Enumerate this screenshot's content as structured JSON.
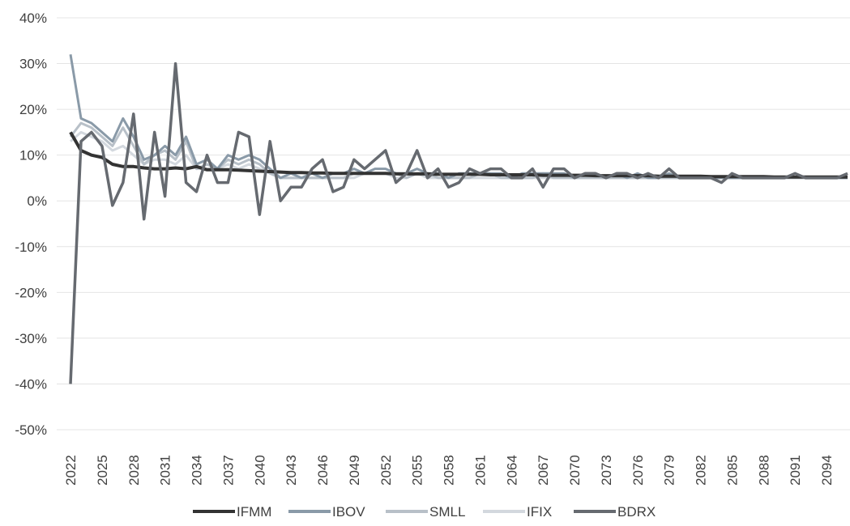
{
  "chart_data": {
    "type": "line",
    "title": "",
    "xlabel": "",
    "ylabel": "",
    "ylim": [
      -0.5,
      0.4
    ],
    "y_ticks": [
      {
        "value": 0.4,
        "label": "40%"
      },
      {
        "value": 0.3,
        "label": "30%"
      },
      {
        "value": 0.2,
        "label": "20%"
      },
      {
        "value": 0.1,
        "label": "10%"
      },
      {
        "value": 0.0,
        "label": "0%"
      },
      {
        "value": -0.1,
        "label": "-10%"
      },
      {
        "value": -0.2,
        "label": "-20%"
      },
      {
        "value": -0.3,
        "label": "-30%"
      },
      {
        "value": -0.4,
        "label": "-40%"
      },
      {
        "value": -0.5,
        "label": "-50%"
      }
    ],
    "x_range": [
      2022,
      2096
    ],
    "x_tick_labels": [
      "2022",
      "2025",
      "2028",
      "2031",
      "2034",
      "2037",
      "2040",
      "2043",
      "2046",
      "2049",
      "2052",
      "2055",
      "2058",
      "2061",
      "2064",
      "2067",
      "2070",
      "2073",
      "2076",
      "2079",
      "2082",
      "2085",
      "2088",
      "2091",
      "2094"
    ],
    "grid": true,
    "legend_position": "bottom",
    "series": [
      {
        "name": "IFMM",
        "color": "#333333",
        "x": [
          2022,
          2023,
          2024,
          2025,
          2026,
          2027,
          2028,
          2029,
          2030,
          2031,
          2032,
          2033,
          2034,
          2035,
          2036,
          2037,
          2038,
          2039,
          2040,
          2041,
          2042,
          2043,
          2044,
          2045,
          2046,
          2047,
          2048,
          2049,
          2050,
          2051,
          2052,
          2053,
          2054,
          2055,
          2056,
          2057,
          2058,
          2059,
          2060,
          2061,
          2062,
          2063,
          2064,
          2065,
          2066,
          2067,
          2068,
          2069,
          2070,
          2071,
          2072,
          2073,
          2074,
          2075,
          2076,
          2077,
          2078,
          2079,
          2080,
          2081,
          2082,
          2083,
          2084,
          2085,
          2086,
          2087,
          2088,
          2089,
          2090,
          2091,
          2092,
          2093,
          2094,
          2095,
          2096
        ],
        "values": [
          0.15,
          0.11,
          0.1,
          0.095,
          0.08,
          0.075,
          0.075,
          0.072,
          0.07,
          0.07,
          0.072,
          0.07,
          0.075,
          0.068,
          0.068,
          0.068,
          0.067,
          0.066,
          0.065,
          0.064,
          0.063,
          0.062,
          0.062,
          0.061,
          0.061,
          0.06,
          0.06,
          0.06,
          0.06,
          0.06,
          0.06,
          0.059,
          0.059,
          0.059,
          0.059,
          0.058,
          0.058,
          0.058,
          0.058,
          0.058,
          0.057,
          0.057,
          0.057,
          0.057,
          0.057,
          0.056,
          0.056,
          0.056,
          0.056,
          0.056,
          0.055,
          0.055,
          0.055,
          0.055,
          0.055,
          0.055,
          0.054,
          0.054,
          0.054,
          0.054,
          0.054,
          0.053,
          0.053,
          0.053,
          0.053,
          0.053,
          0.053,
          0.052,
          0.052,
          0.052,
          0.052,
          0.052,
          0.052,
          0.052,
          0.052
        ]
      },
      {
        "name": "IBOV",
        "color": "#8a9aa8",
        "x": [
          2022,
          2023,
          2024,
          2025,
          2026,
          2027,
          2028,
          2029,
          2030,
          2031,
          2032,
          2033,
          2034,
          2035,
          2036,
          2037,
          2038,
          2039,
          2040,
          2041,
          2042,
          2043,
          2044,
          2045,
          2046,
          2047,
          2048,
          2049,
          2050,
          2051,
          2052,
          2053,
          2054,
          2055,
          2056,
          2057,
          2058,
          2059,
          2060,
          2061,
          2062,
          2063,
          2064,
          2065,
          2066,
          2067,
          2068,
          2069,
          2070,
          2071,
          2072,
          2073,
          2074,
          2075,
          2076,
          2077,
          2078,
          2079,
          2080,
          2081,
          2082,
          2083,
          2084,
          2085,
          2086,
          2087,
          2088,
          2089,
          2090,
          2091,
          2092,
          2093,
          2094,
          2095,
          2096
        ],
        "values": [
          0.32,
          0.18,
          0.17,
          0.15,
          0.13,
          0.18,
          0.14,
          0.09,
          0.1,
          0.12,
          0.1,
          0.14,
          0.08,
          0.09,
          0.07,
          0.1,
          0.09,
          0.1,
          0.09,
          0.07,
          0.05,
          0.06,
          0.05,
          0.06,
          0.05,
          0.06,
          0.06,
          0.07,
          0.06,
          0.07,
          0.07,
          0.06,
          0.06,
          0.07,
          0.06,
          0.06,
          0.05,
          0.06,
          0.06,
          0.06,
          0.06,
          0.06,
          0.05,
          0.06,
          0.06,
          0.06,
          0.06,
          0.06,
          0.05,
          0.06,
          0.06,
          0.05,
          0.06,
          0.05,
          0.06,
          0.05,
          0.05,
          0.06,
          0.05,
          0.05,
          0.05,
          0.05,
          0.05,
          0.05,
          0.05,
          0.05,
          0.05,
          0.05,
          0.05,
          0.06,
          0.05,
          0.05,
          0.05,
          0.05,
          0.05
        ]
      },
      {
        "name": "SMLL",
        "color": "#b8c0c8",
        "x": [
          2022,
          2023,
          2024,
          2025,
          2026,
          2027,
          2028,
          2029,
          2030,
          2031,
          2032,
          2033,
          2034,
          2035,
          2036,
          2037,
          2038,
          2039,
          2040,
          2041,
          2042,
          2043,
          2044,
          2045,
          2046,
          2047,
          2048,
          2049,
          2050,
          2051,
          2052,
          2053,
          2054,
          2055,
          2056,
          2057,
          2058,
          2059,
          2060,
          2061,
          2062,
          2063,
          2064,
          2065,
          2066,
          2067,
          2068,
          2069,
          2070,
          2071,
          2072,
          2073,
          2074,
          2075,
          2076,
          2077,
          2078,
          2079,
          2080,
          2081,
          2082,
          2083,
          2084,
          2085,
          2086,
          2087,
          2088,
          2089,
          2090,
          2091,
          2092,
          2093,
          2094,
          2095,
          2096
        ],
        "values": [
          0.14,
          0.17,
          0.16,
          0.14,
          0.12,
          0.16,
          0.12,
          0.08,
          0.1,
          0.11,
          0.09,
          0.13,
          0.07,
          0.08,
          0.07,
          0.09,
          0.08,
          0.09,
          0.08,
          0.06,
          0.05,
          0.05,
          0.05,
          0.05,
          0.05,
          0.05,
          0.05,
          0.06,
          0.06,
          0.06,
          0.06,
          0.06,
          0.05,
          0.06,
          0.06,
          0.05,
          0.05,
          0.05,
          0.05,
          0.06,
          0.06,
          0.05,
          0.05,
          0.05,
          0.05,
          0.06,
          0.05,
          0.05,
          0.05,
          0.05,
          0.05,
          0.05,
          0.05,
          0.05,
          0.05,
          0.05,
          0.05,
          0.05,
          0.05,
          0.05,
          0.05,
          0.05,
          0.05,
          0.05,
          0.05,
          0.05,
          0.05,
          0.05,
          0.05,
          0.05,
          0.05,
          0.05,
          0.05,
          0.05,
          0.05
        ]
      },
      {
        "name": "IFIX",
        "color": "#d3d8de",
        "x": [
          2022,
          2023,
          2024,
          2025,
          2026,
          2027,
          2028,
          2029,
          2030,
          2031,
          2032,
          2033,
          2034,
          2035,
          2036,
          2037,
          2038,
          2039,
          2040,
          2041,
          2042,
          2043,
          2044,
          2045,
          2046,
          2047,
          2048,
          2049,
          2050,
          2051,
          2052,
          2053,
          2054,
          2055,
          2056,
          2057,
          2058,
          2059,
          2060,
          2061,
          2062,
          2063,
          2064,
          2065,
          2066,
          2067,
          2068,
          2069,
          2070,
          2071,
          2072,
          2073,
          2074,
          2075,
          2076,
          2077,
          2078,
          2079,
          2080,
          2081,
          2082,
          2083,
          2084,
          2085,
          2086,
          2087,
          2088,
          2089,
          2090,
          2091,
          2092,
          2093,
          2094,
          2095,
          2096
        ],
        "values": [
          0.13,
          0.15,
          0.14,
          0.13,
          0.11,
          0.12,
          0.1,
          0.08,
          0.09,
          0.09,
          0.08,
          0.1,
          0.07,
          0.07,
          0.07,
          0.08,
          0.07,
          0.08,
          0.07,
          0.06,
          0.05,
          0.05,
          0.05,
          0.05,
          0.05,
          0.05,
          0.05,
          0.05,
          0.06,
          0.06,
          0.06,
          0.05,
          0.05,
          0.06,
          0.05,
          0.05,
          0.05,
          0.05,
          0.05,
          0.05,
          0.05,
          0.05,
          0.05,
          0.05,
          0.05,
          0.05,
          0.05,
          0.05,
          0.05,
          0.05,
          0.05,
          0.05,
          0.05,
          0.05,
          0.05,
          0.05,
          0.05,
          0.05,
          0.05,
          0.05,
          0.05,
          0.05,
          0.05,
          0.05,
          0.05,
          0.05,
          0.05,
          0.05,
          0.05,
          0.05,
          0.05,
          0.05,
          0.05,
          0.05,
          0.05
        ]
      },
      {
        "name": "BDRX",
        "color": "#666a70",
        "x": [
          2022,
          2023,
          2024,
          2025,
          2026,
          2027,
          2028,
          2029,
          2030,
          2031,
          2032,
          2033,
          2034,
          2035,
          2036,
          2037,
          2038,
          2039,
          2040,
          2041,
          2042,
          2043,
          2044,
          2045,
          2046,
          2047,
          2048,
          2049,
          2050,
          2051,
          2052,
          2053,
          2054,
          2055,
          2056,
          2057,
          2058,
          2059,
          2060,
          2061,
          2062,
          2063,
          2064,
          2065,
          2066,
          2067,
          2068,
          2069,
          2070,
          2071,
          2072,
          2073,
          2074,
          2075,
          2076,
          2077,
          2078,
          2079,
          2080,
          2081,
          2082,
          2083,
          2084,
          2085,
          2086,
          2087,
          2088,
          2089,
          2090,
          2091,
          2092,
          2093,
          2094,
          2095,
          2096
        ],
        "values": [
          -0.4,
          0.13,
          0.15,
          0.12,
          -0.01,
          0.04,
          0.19,
          -0.04,
          0.15,
          0.01,
          0.3,
          0.04,
          0.02,
          0.1,
          0.04,
          0.04,
          0.15,
          0.14,
          -0.03,
          0.13,
          0.0,
          0.03,
          0.03,
          0.07,
          0.09,
          0.02,
          0.03,
          0.09,
          0.07,
          0.09,
          0.11,
          0.04,
          0.06,
          0.11,
          0.05,
          0.07,
          0.03,
          0.04,
          0.07,
          0.06,
          0.07,
          0.07,
          0.05,
          0.05,
          0.07,
          0.03,
          0.07,
          0.07,
          0.05,
          0.06,
          0.06,
          0.05,
          0.06,
          0.06,
          0.05,
          0.06,
          0.05,
          0.07,
          0.05,
          0.05,
          0.05,
          0.05,
          0.04,
          0.06,
          0.05,
          0.05,
          0.05,
          0.05,
          0.05,
          0.06,
          0.05,
          0.05,
          0.05,
          0.05,
          0.06
        ]
      }
    ]
  }
}
